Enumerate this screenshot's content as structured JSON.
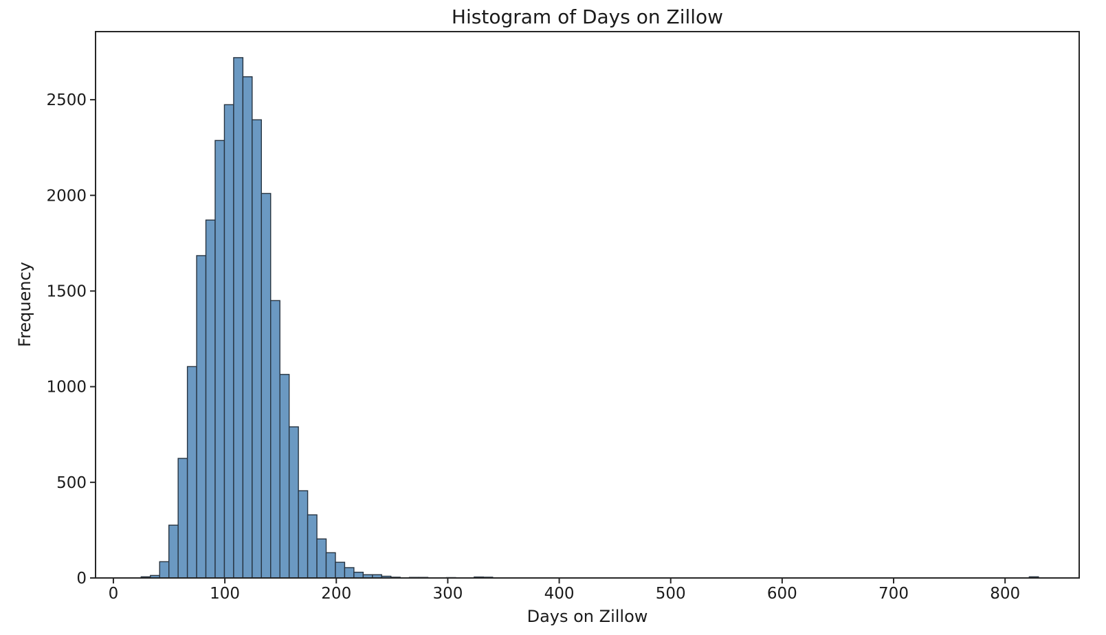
{
  "chart_data": {
    "type": "bar",
    "subtype": "histogram",
    "title": "Histogram of Days on Zillow",
    "xlabel": "Days on Zillow",
    "ylabel": "Frequency",
    "xlim": [
      -16,
      866.5
    ],
    "ylim": [
      0,
      2856
    ],
    "xticks": [
      0,
      100,
      200,
      300,
      400,
      500,
      600,
      700,
      800
    ],
    "yticks": [
      0,
      500,
      1000,
      1500,
      2000,
      2500
    ],
    "grid": false,
    "legend": null,
    "bin_width": 8.3,
    "bars": [
      {
        "x0": 24.9,
        "n": 6
      },
      {
        "x0": 33.2,
        "n": 13
      },
      {
        "x0": 41.5,
        "n": 85
      },
      {
        "x0": 49.8,
        "n": 276
      },
      {
        "x0": 58.1,
        "n": 625
      },
      {
        "x0": 66.4,
        "n": 1105
      },
      {
        "x0": 74.7,
        "n": 1685
      },
      {
        "x0": 83.0,
        "n": 1871
      },
      {
        "x0": 91.3,
        "n": 2287
      },
      {
        "x0": 99.6,
        "n": 2474
      },
      {
        "x0": 107.9,
        "n": 2720
      },
      {
        "x0": 116.2,
        "n": 2620
      },
      {
        "x0": 124.5,
        "n": 2395
      },
      {
        "x0": 132.8,
        "n": 2010
      },
      {
        "x0": 141.1,
        "n": 1450
      },
      {
        "x0": 149.4,
        "n": 1064
      },
      {
        "x0": 157.7,
        "n": 790
      },
      {
        "x0": 166.0,
        "n": 456
      },
      {
        "x0": 174.3,
        "n": 330
      },
      {
        "x0": 182.6,
        "n": 204
      },
      {
        "x0": 190.9,
        "n": 132
      },
      {
        "x0": 199.2,
        "n": 82
      },
      {
        "x0": 207.5,
        "n": 54
      },
      {
        "x0": 215.8,
        "n": 30
      },
      {
        "x0": 224.1,
        "n": 17
      },
      {
        "x0": 232.4,
        "n": 17
      },
      {
        "x0": 240.7,
        "n": 9
      },
      {
        "x0": 249.0,
        "n": 4
      },
      {
        "x0": 265.6,
        "n": 3
      },
      {
        "x0": 273.9,
        "n": 3
      },
      {
        "x0": 298.8,
        "n": 2
      },
      {
        "x0": 323.7,
        "n": 5
      },
      {
        "x0": 332.0,
        "n": 4
      },
      {
        "x0": 821.7,
        "n": 6
      }
    ],
    "colors": {
      "bar_fill": "#6b99c2",
      "bar_edge": "#263340",
      "axis": "#262626",
      "text": "#1a1a1a",
      "background": "#ffffff"
    }
  }
}
